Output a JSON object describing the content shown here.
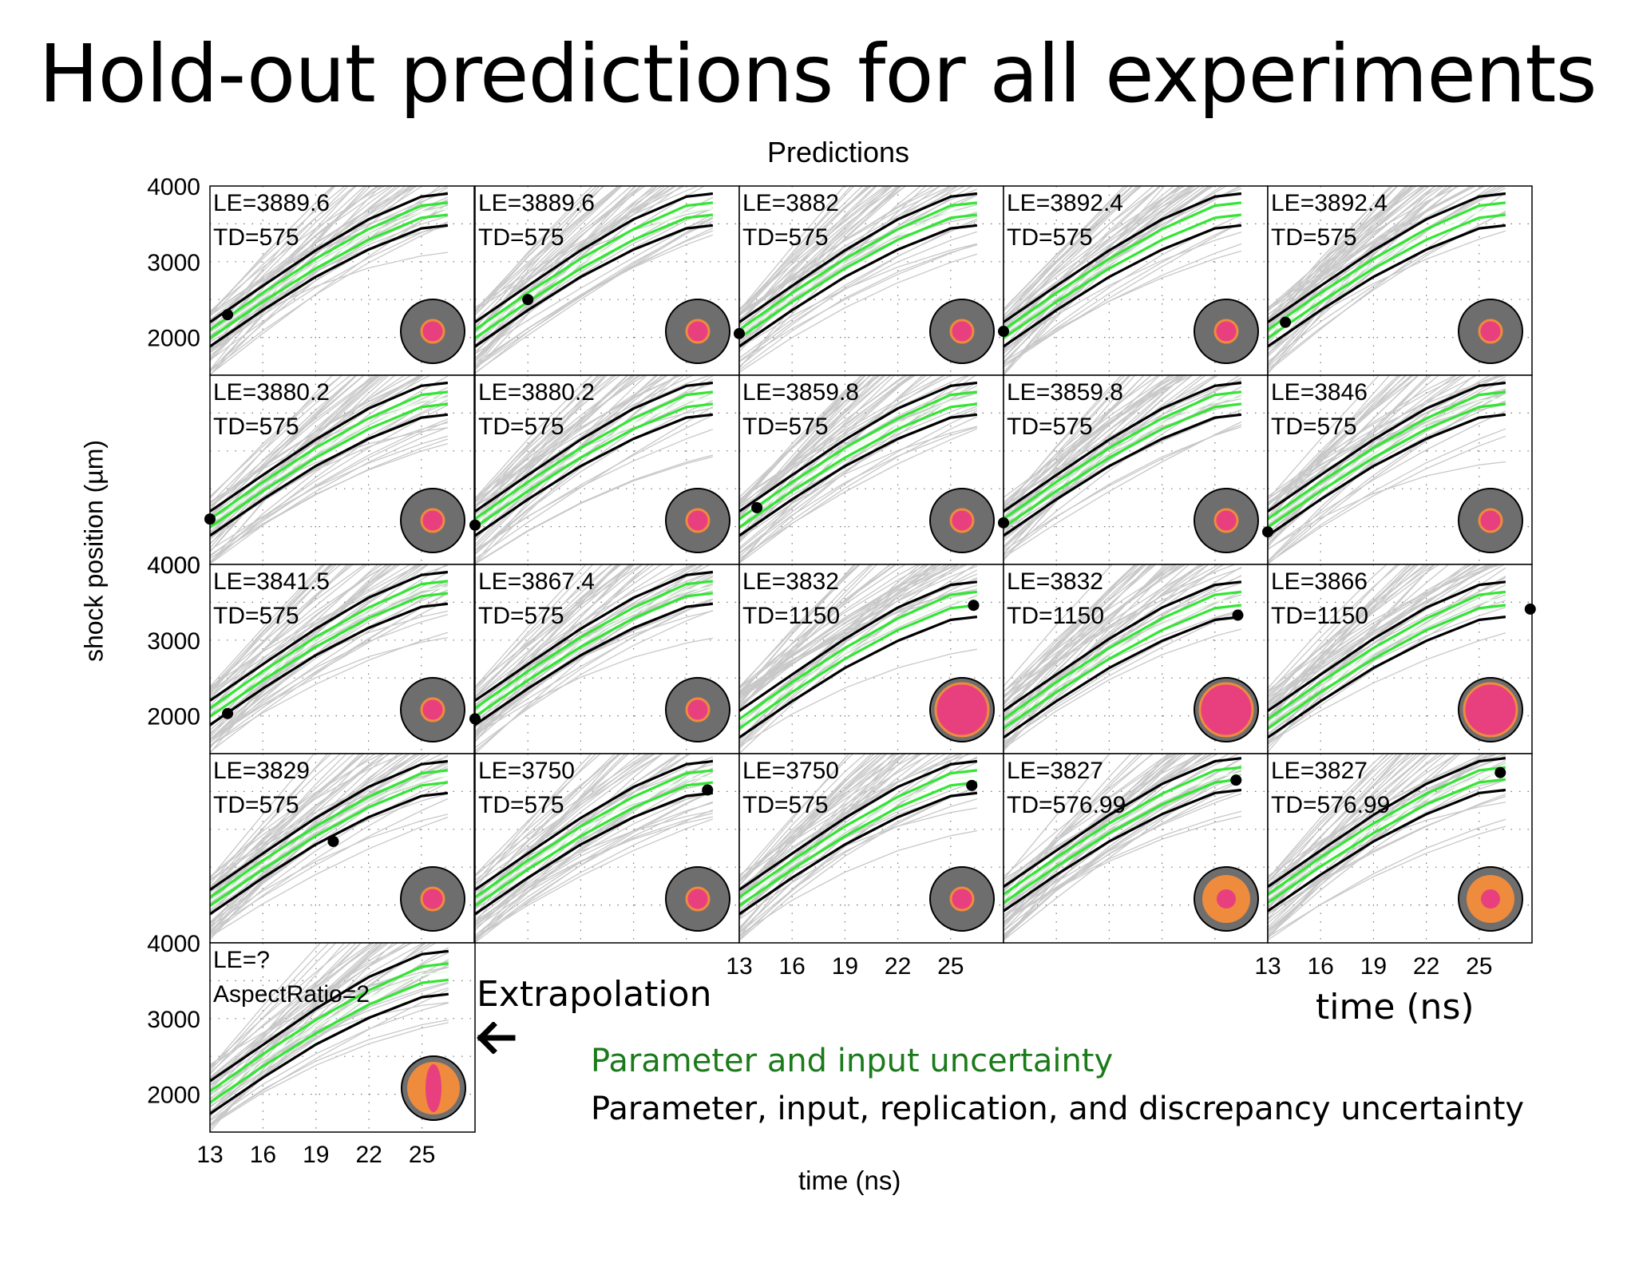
{
  "slide": {
    "title": "Hold-out predictions for all experiments",
    "extrapolation_label": "Extrapolation",
    "legend": {
      "green": "Parameter and input uncertainty",
      "black": "Parameter, input, replication, and discrepancy uncertainty"
    },
    "arrow_icon": "left-arrow-icon"
  },
  "colors": {
    "prior_lines": "#c8c8c8",
    "band_green": "#33e633",
    "band_black": "#000000",
    "capsule_gray": "#6e6e6e",
    "capsule_pink": "#e8407e",
    "capsule_orange": "#ee8b3c",
    "legend_green_text": "#1b7a1b"
  },
  "chart_data": {
    "type": "line",
    "title": "Predictions",
    "xlabel": "time (ns)",
    "ylabel": "shock position (µm)",
    "xlim": [
      13,
      28
    ],
    "ylim": [
      1500,
      4000
    ],
    "x": [
      13,
      16,
      19,
      22,
      25,
      26.5
    ],
    "xticks": [
      "13",
      "16",
      "19",
      "22",
      "25"
    ],
    "yticks": [
      "2000",
      "3000",
      "4000"
    ],
    "panels": [
      {
        "le": "LE=3889.6",
        "td": "TD=575",
        "capsule": "small",
        "point": [
          14,
          2300
        ]
      },
      {
        "le": "LE=3889.6",
        "td": "TD=575",
        "capsule": "small",
        "point": [
          16,
          2500
        ]
      },
      {
        "le": "LE=3882",
        "td": "TD=575",
        "capsule": "small",
        "point": [
          13,
          2050
        ]
      },
      {
        "le": "LE=3892.4",
        "td": "TD=575",
        "capsule": "small",
        "point": [
          13,
          2080
        ]
      },
      {
        "le": "LE=3892.4",
        "td": "TD=575",
        "capsule": "small",
        "point": [
          14,
          2200
        ]
      },
      {
        "le": "LE=3880.2",
        "td": "TD=575",
        "capsule": "small",
        "point": [
          13,
          2100
        ]
      },
      {
        "le": "LE=3880.2",
        "td": "TD=575",
        "capsule": "small",
        "point": [
          13,
          2020
        ]
      },
      {
        "le": "LE=3859.8",
        "td": "TD=575",
        "capsule": "small",
        "point": [
          14,
          2250
        ]
      },
      {
        "le": "LE=3859.8",
        "td": "TD=575",
        "capsule": "small",
        "point": [
          13,
          2050
        ]
      },
      {
        "le": "LE=3846",
        "td": "TD=575",
        "capsule": "small",
        "point": [
          13,
          1930
        ]
      },
      {
        "le": "LE=3841.5",
        "td": "TD=575",
        "capsule": "small",
        "point": [
          14,
          2030
        ]
      },
      {
        "le": "LE=3867.4",
        "td": "TD=575",
        "capsule": "small",
        "point": [
          13,
          1960
        ]
      },
      {
        "le": "LE=3832",
        "td": "TD=1150",
        "capsule": "large",
        "point": [
          26.3,
          3460
        ]
      },
      {
        "le": "LE=3832",
        "td": "TD=1150",
        "capsule": "large",
        "point": [
          26.3,
          3330
        ]
      },
      {
        "le": "LE=3866",
        "td": "TD=1150",
        "capsule": "large",
        "point": [
          27.9,
          3410
        ]
      },
      {
        "le": "LE=3829",
        "td": "TD=575",
        "capsule": "small",
        "point": [
          20,
          2840
        ]
      },
      {
        "le": "LE=3750",
        "td": "TD=575",
        "capsule": "small",
        "point": [
          26.2,
          3520
        ]
      },
      {
        "le": "LE=3750",
        "td": "TD=575",
        "capsule": "small",
        "point": [
          26.2,
          3580
        ]
      },
      {
        "le": "LE=3827",
        "td": "TD=576.99",
        "capsule": "orange",
        "point": [
          26.2,
          3650
        ]
      },
      {
        "le": "LE=3827",
        "td": "TD=576.99",
        "capsule": "orange",
        "point": [
          26.2,
          3750
        ]
      },
      {
        "le": "LE=?",
        "td": "AspectRatio=2",
        "capsule": "ellipse",
        "point": null
      }
    ],
    "bands_typical": {
      "black_upper": [
        2200,
        2680,
        3150,
        3560,
        3860,
        3900
      ],
      "green_upper": [
        2100,
        2590,
        3040,
        3430,
        3740,
        3780
      ],
      "green_lower": [
        1990,
        2470,
        2910,
        3290,
        3580,
        3620
      ],
      "black_lower": [
        1880,
        2360,
        2800,
        3160,
        3440,
        3480
      ]
    }
  }
}
